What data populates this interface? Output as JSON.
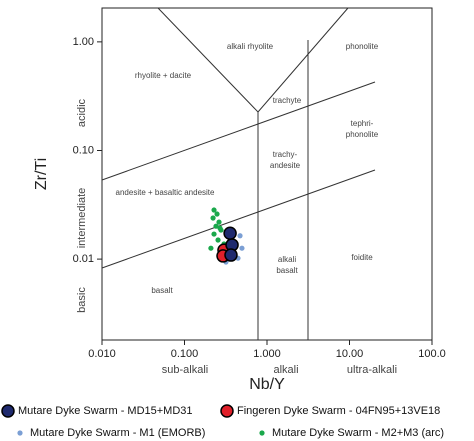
{
  "chart_data": {
    "type": "scatter",
    "xlabel": "Nb/Y",
    "ylabel": "Zr/Ti",
    "xscale": "log",
    "yscale": "log",
    "xlim": [
      0.01,
      100
    ],
    "ylim": [
      0.0018,
      2.05
    ],
    "xticks": [
      {
        "value": 0.01,
        "label": "0.010"
      },
      {
        "value": 0.1,
        "label": "0.100"
      },
      {
        "value": 1,
        "label": "1.000"
      },
      {
        "value": 10,
        "label": "10.00"
      },
      {
        "value": 100,
        "label": "100.0"
      }
    ],
    "yticks": [
      {
        "value": 1,
        "label": "1.00"
      },
      {
        "value": 0.1,
        "label": "0.10"
      },
      {
        "value": 0.01,
        "label": "0.01"
      }
    ],
    "x_annotations": [
      "sub-alkali",
      "alkali",
      "ultra-alkali"
    ],
    "y_annotations": [
      "acidic",
      "intermediate",
      "basic"
    ],
    "field_labels": [
      [
        "alkali rhyolite"
      ],
      [
        "phonolite"
      ],
      [
        "rhyolite + dacite"
      ],
      [
        "trachyte"
      ],
      [
        "tephri-",
        "phonolite"
      ],
      [
        "trachy-",
        "andesite"
      ],
      [
        "andesite + basaltic andesite"
      ],
      [
        "alkali",
        "basalt"
      ],
      [
        "foidite"
      ],
      [
        "basalt"
      ]
    ],
    "series": [
      {
        "name": "Mutare Dyke Swarm - MD15+MD31",
        "color": "#1f2a6e",
        "size": "large",
        "x": [
          0.357,
          0.377,
          0.366
        ],
        "values": [
          0.0173,
          0.0135,
          0.0109
        ]
      },
      {
        "name": "Fingeren Dyke Swarm - 04FN95+13VE18",
        "color": "#e0202a",
        "size": "large",
        "x": [
          0.301,
          0.293
        ],
        "values": [
          0.0121,
          0.0107
        ]
      },
      {
        "name": "Mutare Dyke Swarm - M1 (EMORB)",
        "color": "#7b9fd4",
        "size": "small",
        "x": [
          0.346,
          0.421,
          0.471,
          0.377,
          0.445,
          0.318,
          0.497
        ],
        "values": [
          0.0164,
          0.0138,
          0.0164,
          0.0116,
          0.0102,
          0.0094,
          0.0126
        ]
      },
      {
        "name": "Mutare Dyke Swarm - M2+M3 (arc)",
        "color": "#1aa84b",
        "size": "small",
        "x": [
          0.228,
          0.248,
          0.222,
          0.262,
          0.241,
          0.277,
          0.228,
          0.255,
          0.301,
          0.209,
          0.318,
          0.269,
          0.366
        ],
        "values": [
          0.0283,
          0.026,
          0.0239,
          0.0219,
          0.0201,
          0.0185,
          0.017,
          0.015,
          0.0138,
          0.0126,
          0.0116,
          0.0193,
          0.015
        ]
      }
    ]
  }
}
